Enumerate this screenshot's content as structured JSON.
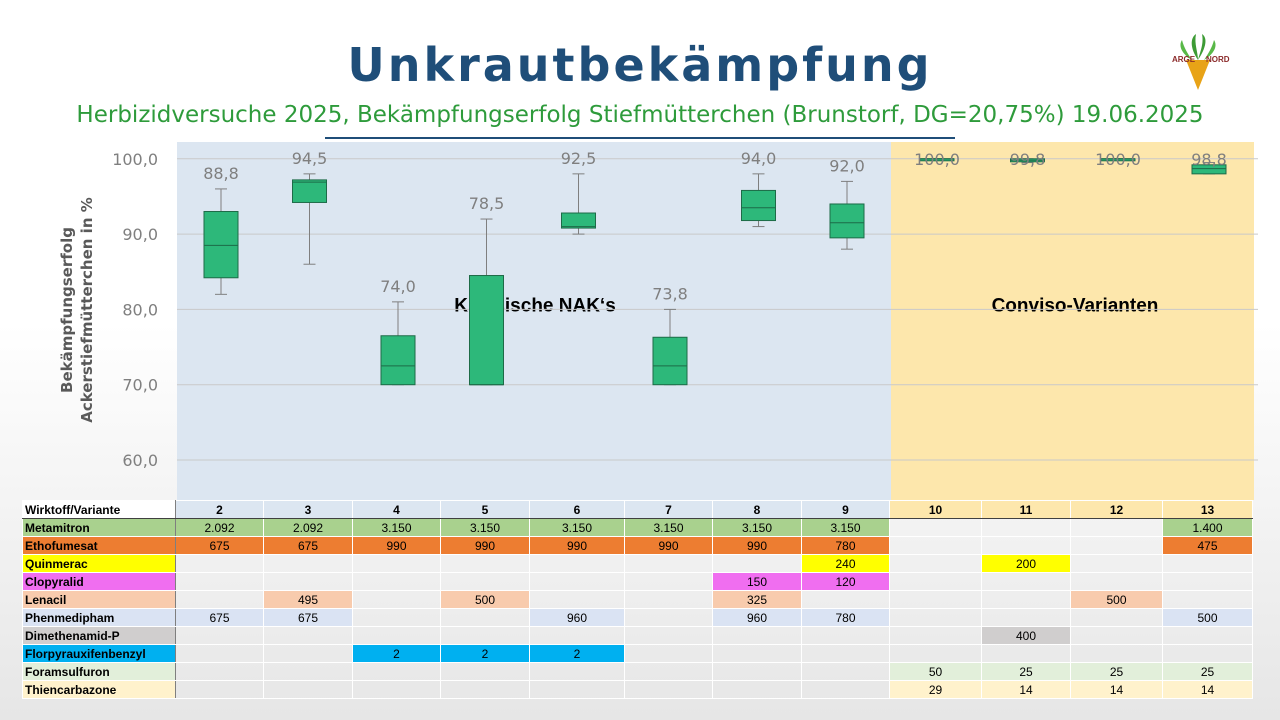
{
  "title": "Unkrautbekämpfung",
  "subtitle": "Herbizidversuche 2025, Bekämpfungserfolg Stiefmütterchen (Brunstorf, DG=20,75%) 19.06.2025",
  "logo": {
    "left": "ARGE",
    "right": "NORD"
  },
  "chart_data": {
    "type": "box",
    "ylabel": [
      "Bekämpfungserfolg",
      "Ackerstiefmütterchen in %"
    ],
    "ylim": [
      55,
      102
    ],
    "yticks": [
      "60,0",
      "70,0",
      "80,0",
      "90,0",
      "100,0"
    ],
    "ytick_values": [
      60,
      70,
      80,
      90,
      100
    ],
    "regions": [
      {
        "label": "Klassische NAK‘s",
        "from": "2",
        "to": "9",
        "color": "#dce6f1"
      },
      {
        "label": "Conviso-Varianten",
        "from": "10",
        "to": "13",
        "color": "#fde7ac"
      }
    ],
    "categories": [
      "2",
      "3",
      "4",
      "5",
      "6",
      "7",
      "8",
      "9",
      "10",
      "11",
      "12",
      "13"
    ],
    "boxes": [
      {
        "x": "2",
        "min": 82,
        "q1": 84.2,
        "median": 88.5,
        "q3": 93,
        "max": 96,
        "mean": 88.8,
        "label": "88,8"
      },
      {
        "x": "3",
        "min": 86,
        "q1": 94.2,
        "median": 96.9,
        "q3": 97.2,
        "max": 98,
        "mean": 94.5,
        "label": "94,5"
      },
      {
        "x": "4",
        "min": 70,
        "q1": 70,
        "median": 72.5,
        "q3": 76.5,
        "max": 81,
        "mean": 74.0,
        "label": "74,0"
      },
      {
        "x": "5",
        "min": 70,
        "q1": 70,
        "median": 70,
        "q3": 84.5,
        "max": 92,
        "mean": 78.5,
        "label": "78,5"
      },
      {
        "x": "6",
        "min": 90,
        "q1": 90.8,
        "median": 91,
        "q3": 92.8,
        "max": 98,
        "mean": 92.5,
        "label": "92,5"
      },
      {
        "x": "7",
        "min": 70,
        "q1": 70,
        "median": 72.5,
        "q3": 76.3,
        "max": 80,
        "mean": 73.8,
        "label": "73,8"
      },
      {
        "x": "8",
        "min": 91,
        "q1": 91.8,
        "median": 93.5,
        "q3": 95.8,
        "max": 98,
        "mean": 94.0,
        "label": "94,0"
      },
      {
        "x": "9",
        "min": 88,
        "q1": 89.5,
        "median": 91.5,
        "q3": 94,
        "max": 97,
        "mean": 92.0,
        "label": "92,0"
      },
      {
        "x": "10",
        "min": 100,
        "q1": 100,
        "median": 100,
        "q3": 100,
        "max": 100,
        "mean": 100.0,
        "label": "100,0"
      },
      {
        "x": "11",
        "min": 99.5,
        "q1": 99.6,
        "median": 99.8,
        "q3": 100,
        "max": 100,
        "mean": 99.8,
        "label": "99,8"
      },
      {
        "x": "12",
        "min": 100,
        "q1": 100,
        "median": 100,
        "q3": 100,
        "max": 100,
        "mean": 100.0,
        "label": "100,0"
      },
      {
        "x": "13",
        "min": 98,
        "q1": 98,
        "median": 98.7,
        "q3": 99.2,
        "max": 99.5,
        "mean": 98.8,
        "label": "98,8"
      }
    ]
  },
  "table": {
    "header": [
      "Wirktoff/Variante",
      "2",
      "3",
      "4",
      "5",
      "6",
      "7",
      "8",
      "9",
      "10",
      "11",
      "12",
      "13"
    ],
    "rows": [
      {
        "name": "Metamitron",
        "color": "#a9d18e",
        "cells": [
          "2.092",
          "2.092",
          "3.150",
          "3.150",
          "3.150",
          "3.150",
          "3.150",
          "3.150",
          "",
          "",
          "",
          "1.400"
        ]
      },
      {
        "name": "Ethofumesat",
        "color": "#ed7d31",
        "cells": [
          "675",
          "675",
          "990",
          "990",
          "990",
          "990",
          "990",
          "780",
          "",
          "",
          "",
          "475"
        ]
      },
      {
        "name": "Quinmerac",
        "color": "#ffff00",
        "cells": [
          "",
          "",
          "",
          "",
          "",
          "",
          "",
          "240",
          "",
          "200",
          "",
          ""
        ]
      },
      {
        "name": "Clopyralid",
        "color": "#f06ef0",
        "cells": [
          "",
          "",
          "",
          "",
          "",
          "",
          "150",
          "120",
          "",
          "",
          "",
          ""
        ]
      },
      {
        "name": "Lenacil",
        "color": "#f8cbad",
        "cells": [
          "",
          "495",
          "",
          "500",
          "",
          "",
          "325",
          "",
          "",
          "",
          "500",
          ""
        ]
      },
      {
        "name": "Phenmedipham",
        "color": "#dae3f3",
        "cells": [
          "675",
          "675",
          "",
          "",
          "960",
          "",
          "960",
          "780",
          "",
          "",
          "",
          "500"
        ]
      },
      {
        "name": "Dimethenamid-P",
        "color": "#d0cece",
        "cells": [
          "",
          "",
          "",
          "",
          "",
          "",
          "",
          "",
          "",
          "400",
          "",
          ""
        ]
      },
      {
        "name": "Florpyrauxifenbenzyl",
        "color": "#00b0f0",
        "cells": [
          "",
          "",
          "2",
          "2",
          "2",
          "",
          "",
          "",
          "",
          "",
          "",
          ""
        ]
      },
      {
        "name": "Foramsulfuron",
        "color": "#e2efda",
        "cells": [
          "",
          "",
          "",
          "",
          "",
          "",
          "",
          "",
          "50",
          "25",
          "25",
          "25"
        ]
      },
      {
        "name": "Thiencarbazone",
        "color": "#fff2cc",
        "cells": [
          "",
          "",
          "",
          "",
          "",
          "",
          "",
          "",
          "29",
          "14",
          "14",
          "14"
        ]
      }
    ]
  }
}
